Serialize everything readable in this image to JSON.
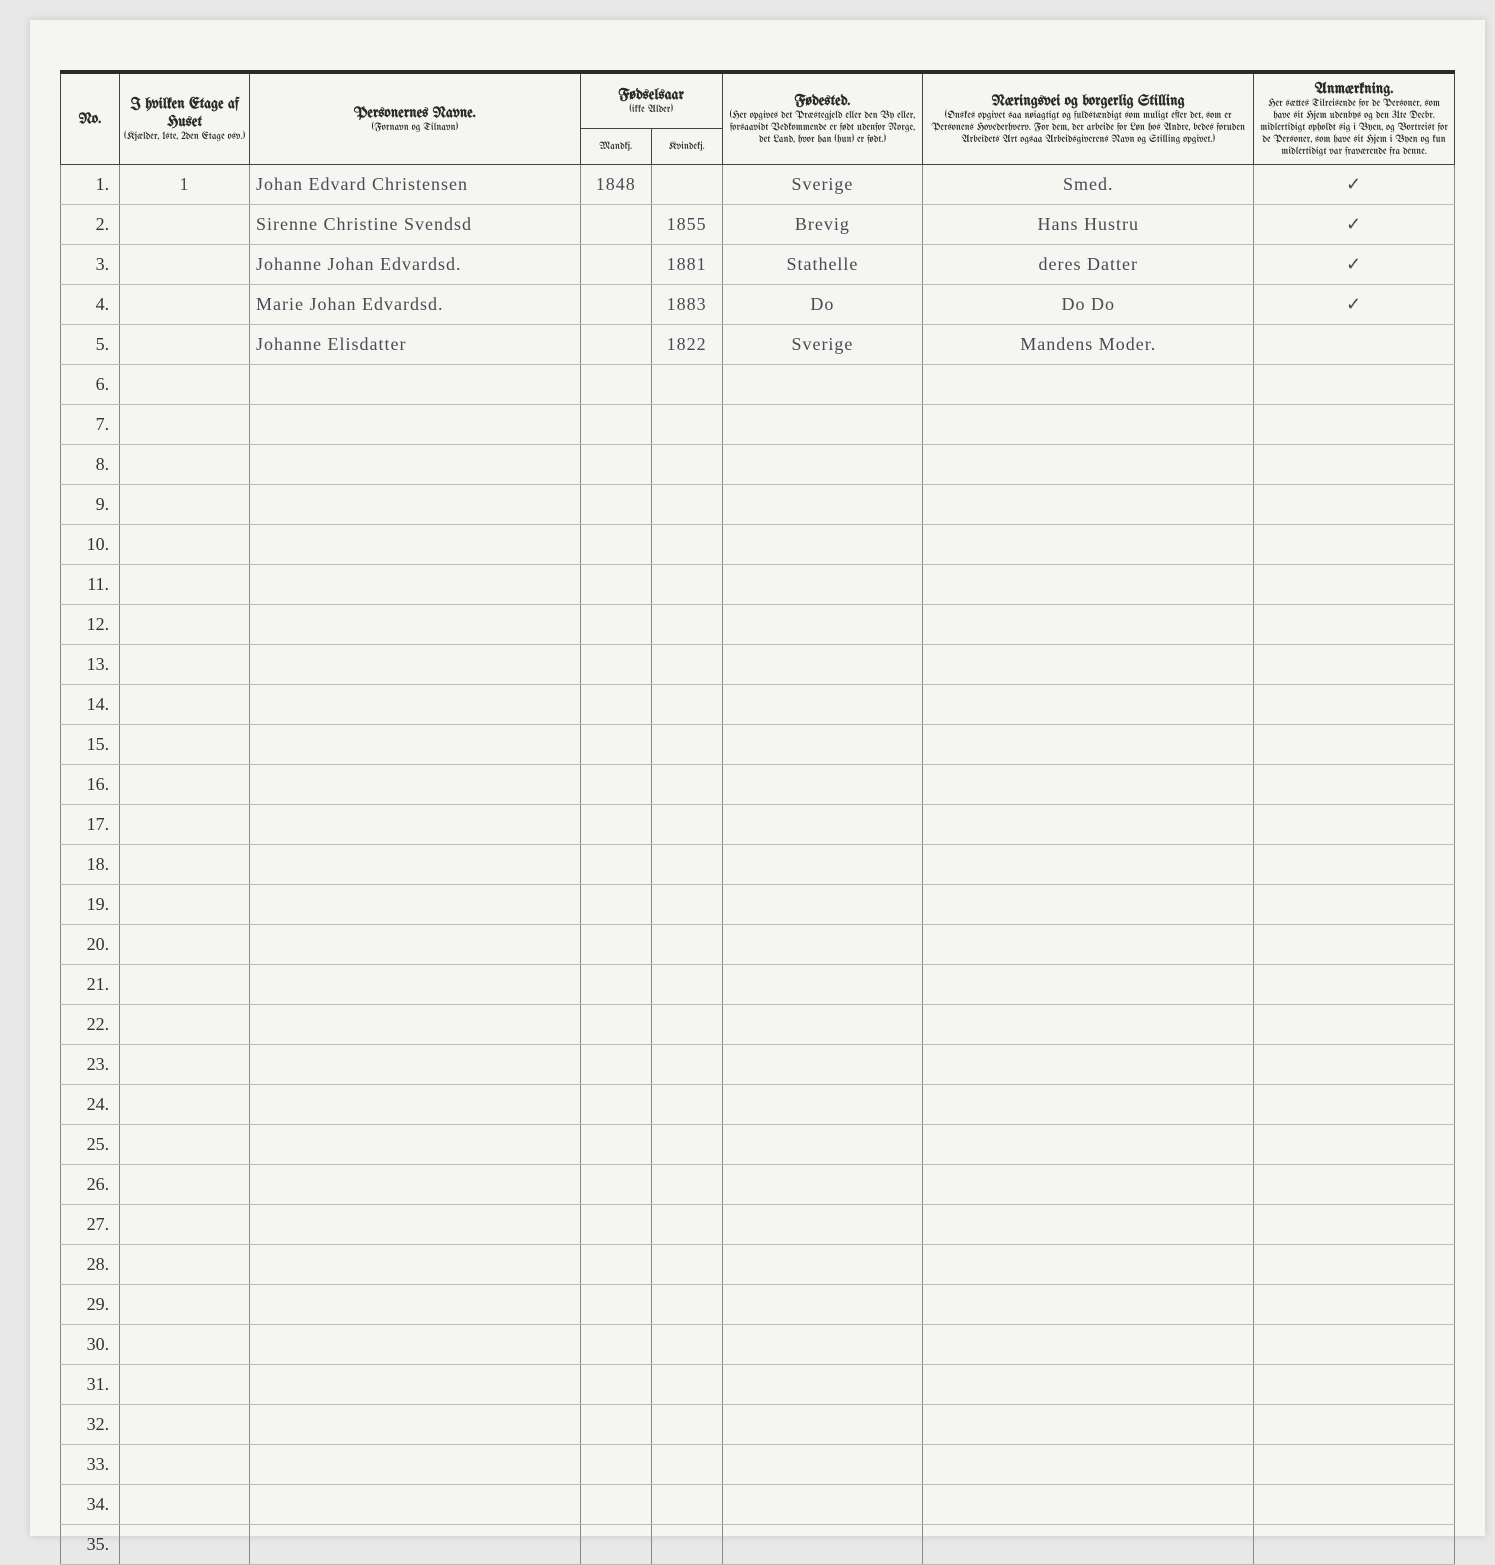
{
  "headers": {
    "no": "No.",
    "etage_title": "I hvilken Etage af Huset",
    "etage_sub": "(Kjælder, 1ste, 2den Etage osv.)",
    "navne_title": "Personernes Navne.",
    "navne_sub": "(Fornavn og Tilnavn)",
    "fodsel_title": "Fødselsaar",
    "fodsel_sub": "(ikke Alder)",
    "mandkj": "Mandkj.",
    "kvindekj": "Kvindekj.",
    "fodested_title": "Fødested.",
    "fodested_sub": "(Her opgives det Præstegjeld eller den By eller, forsaavidt Vedkommende er født udenfor Norge, det Land, hvor han (hun) er født.)",
    "stilling_title": "Næringsvei og borgerlig Stilling",
    "stilling_sub": "(Ønskes opgivet saa nøiagtigt og fuldstændigt som muligt efter det, som er Personens Hovederhverv. For dem, der arbeide for Løn hos Andre, bedes foruden Arbeidets Art ogsaa Arbeidsgiverens Navn og Stilling opgivet.)",
    "anm_title": "Anmærkning.",
    "anm_sub": "Her sættes Tilreisende for de Personer, som have sit Hjem udenbys og den 31te Decbr. midlertidigt opholdt sig i Byen, og Bortreist for de Personer, som have sit Hjem i Byen og kun midlertidigt var fraværende fra denne."
  },
  "rows": [
    {
      "no": "1.",
      "etage": "1",
      "name": "Johan Edvard Christensen",
      "mand": "1848",
      "kvinde": "",
      "fodested": "Sverige",
      "stilling": "Smed.",
      "anm": "✓"
    },
    {
      "no": "2.",
      "etage": "",
      "name": "Sirenne Christine Svendsd",
      "mand": "",
      "kvinde": "1855",
      "fodested": "Brevig",
      "stilling": "Hans Hustru",
      "anm": "✓"
    },
    {
      "no": "3.",
      "etage": "",
      "name": "Johanne Johan Edvardsd.",
      "mand": "",
      "kvinde": "1881",
      "fodested": "Stathelle",
      "stilling": "deres Datter",
      "anm": "✓"
    },
    {
      "no": "4.",
      "etage": "",
      "name": "Marie Johan Edvardsd.",
      "mand": "",
      "kvinde": "1883",
      "fodested": "Do",
      "stilling": "Do Do",
      "anm": "✓"
    },
    {
      "no": "5.",
      "etage": "",
      "name": "Johanne Elisdatter",
      "mand": "",
      "kvinde": "1822",
      "fodested": "Sverige",
      "stilling": "Mandens Moder.",
      "anm": ""
    },
    {
      "no": "6.",
      "etage": "",
      "name": "",
      "mand": "",
      "kvinde": "",
      "fodested": "",
      "stilling": "",
      "anm": ""
    },
    {
      "no": "7.",
      "etage": "",
      "name": "",
      "mand": "",
      "kvinde": "",
      "fodested": "",
      "stilling": "",
      "anm": ""
    },
    {
      "no": "8.",
      "etage": "",
      "name": "",
      "mand": "",
      "kvinde": "",
      "fodested": "",
      "stilling": "",
      "anm": ""
    },
    {
      "no": "9.",
      "etage": "",
      "name": "",
      "mand": "",
      "kvinde": "",
      "fodested": "",
      "stilling": "",
      "anm": ""
    },
    {
      "no": "10.",
      "etage": "",
      "name": "",
      "mand": "",
      "kvinde": "",
      "fodested": "",
      "stilling": "",
      "anm": ""
    },
    {
      "no": "11.",
      "etage": "",
      "name": "",
      "mand": "",
      "kvinde": "",
      "fodested": "",
      "stilling": "",
      "anm": ""
    },
    {
      "no": "12.",
      "etage": "",
      "name": "",
      "mand": "",
      "kvinde": "",
      "fodested": "",
      "stilling": "",
      "anm": ""
    },
    {
      "no": "13.",
      "etage": "",
      "name": "",
      "mand": "",
      "kvinde": "",
      "fodested": "",
      "stilling": "",
      "anm": ""
    },
    {
      "no": "14.",
      "etage": "",
      "name": "",
      "mand": "",
      "kvinde": "",
      "fodested": "",
      "stilling": "",
      "anm": ""
    },
    {
      "no": "15.",
      "etage": "",
      "name": "",
      "mand": "",
      "kvinde": "",
      "fodested": "",
      "stilling": "",
      "anm": ""
    },
    {
      "no": "16.",
      "etage": "",
      "name": "",
      "mand": "",
      "kvinde": "",
      "fodested": "",
      "stilling": "",
      "anm": ""
    },
    {
      "no": "17.",
      "etage": "",
      "name": "",
      "mand": "",
      "kvinde": "",
      "fodested": "",
      "stilling": "",
      "anm": ""
    },
    {
      "no": "18.",
      "etage": "",
      "name": "",
      "mand": "",
      "kvinde": "",
      "fodested": "",
      "stilling": "",
      "anm": ""
    },
    {
      "no": "19.",
      "etage": "",
      "name": "",
      "mand": "",
      "kvinde": "",
      "fodested": "",
      "stilling": "",
      "anm": ""
    },
    {
      "no": "20.",
      "etage": "",
      "name": "",
      "mand": "",
      "kvinde": "",
      "fodested": "",
      "stilling": "",
      "anm": ""
    },
    {
      "no": "21.",
      "etage": "",
      "name": "",
      "mand": "",
      "kvinde": "",
      "fodested": "",
      "stilling": "",
      "anm": ""
    },
    {
      "no": "22.",
      "etage": "",
      "name": "",
      "mand": "",
      "kvinde": "",
      "fodested": "",
      "stilling": "",
      "anm": ""
    },
    {
      "no": "23.",
      "etage": "",
      "name": "",
      "mand": "",
      "kvinde": "",
      "fodested": "",
      "stilling": "",
      "anm": ""
    },
    {
      "no": "24.",
      "etage": "",
      "name": "",
      "mand": "",
      "kvinde": "",
      "fodested": "",
      "stilling": "",
      "anm": ""
    },
    {
      "no": "25.",
      "etage": "",
      "name": "",
      "mand": "",
      "kvinde": "",
      "fodested": "",
      "stilling": "",
      "anm": ""
    },
    {
      "no": "26.",
      "etage": "",
      "name": "",
      "mand": "",
      "kvinde": "",
      "fodested": "",
      "stilling": "",
      "anm": ""
    },
    {
      "no": "27.",
      "etage": "",
      "name": "",
      "mand": "",
      "kvinde": "",
      "fodested": "",
      "stilling": "",
      "anm": ""
    },
    {
      "no": "28.",
      "etage": "",
      "name": "",
      "mand": "",
      "kvinde": "",
      "fodested": "",
      "stilling": "",
      "anm": ""
    },
    {
      "no": "29.",
      "etage": "",
      "name": "",
      "mand": "",
      "kvinde": "",
      "fodested": "",
      "stilling": "",
      "anm": ""
    },
    {
      "no": "30.",
      "etage": "",
      "name": "",
      "mand": "",
      "kvinde": "",
      "fodested": "",
      "stilling": "",
      "anm": ""
    },
    {
      "no": "31.",
      "etage": "",
      "name": "",
      "mand": "",
      "kvinde": "",
      "fodested": "",
      "stilling": "",
      "anm": ""
    },
    {
      "no": "32.",
      "etage": "",
      "name": "",
      "mand": "",
      "kvinde": "",
      "fodested": "",
      "stilling": "",
      "anm": ""
    },
    {
      "no": "33.",
      "etage": "",
      "name": "",
      "mand": "",
      "kvinde": "",
      "fodested": "",
      "stilling": "",
      "anm": ""
    },
    {
      "no": "34.",
      "etage": "",
      "name": "",
      "mand": "",
      "kvinde": "",
      "fodested": "",
      "stilling": "",
      "anm": ""
    },
    {
      "no": "35.",
      "etage": "",
      "name": "",
      "mand": "",
      "kvinde": "",
      "fodested": "",
      "stilling": "",
      "anm": ""
    }
  ],
  "style": {
    "paper_bg": "#f5f5f2",
    "ink": "#2a2a2a",
    "handwriting": "#4a4a55",
    "rule": "#888888"
  }
}
